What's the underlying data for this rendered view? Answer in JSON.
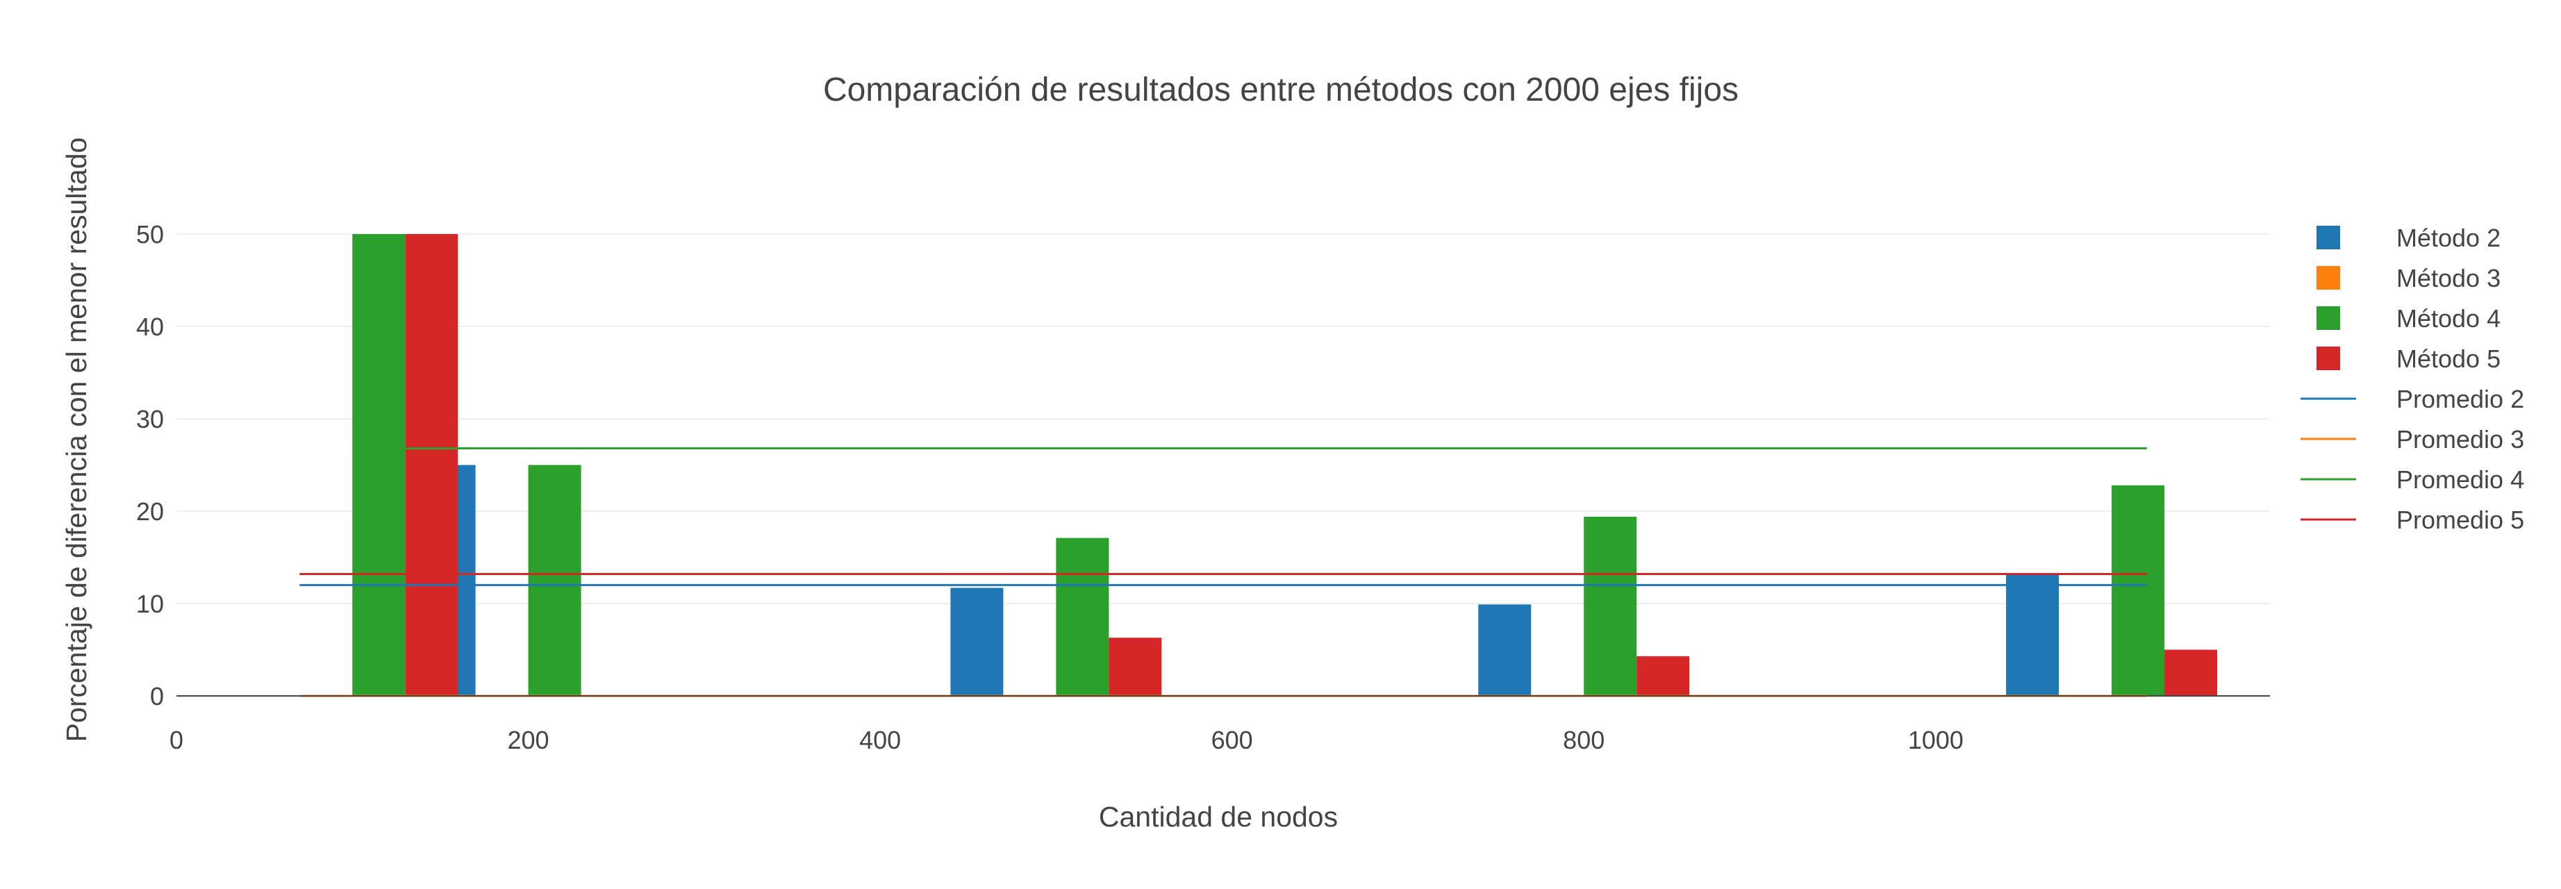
{
  "chart_data": {
    "type": "bar",
    "title": "Comparación de resultados entre métodos con 2000 ejes fijos",
    "xlabel": "Cantidad de nodos",
    "ylabel": "Porcentaje de diferencia con el menor resultado",
    "xlim": [
      0,
      1190
    ],
    "ylim": [
      0,
      50
    ],
    "x_ticks": [
      0,
      200,
      400,
      600,
      800,
      1000
    ],
    "y_ticks": [
      0,
      10,
      20,
      30,
      40,
      50
    ],
    "grid": "horizontal",
    "legend_position": "right",
    "groups": [
      100,
      200,
      500,
      800,
      1100
    ],
    "bar_series": [
      {
        "name": "Método 2",
        "color": "#1f77b4",
        "values": [
          0,
          25,
          11.7,
          9.9,
          13.3
        ]
      },
      {
        "name": "Método 3",
        "color": "#ff7f0e",
        "values": [
          0,
          0,
          0,
          0,
          0
        ]
      },
      {
        "name": "Método 4",
        "color": "#2ca02c",
        "values": [
          50,
          25,
          17.1,
          19.4,
          22.8
        ]
      },
      {
        "name": "Método 5",
        "color": "#d62728",
        "values": [
          50,
          0,
          6.3,
          4.3,
          5.0
        ]
      }
    ],
    "line_series": [
      {
        "name": "Promedio 2",
        "color": "#1f77b4",
        "value": 12.0,
        "x_range": [
          70,
          1120
        ]
      },
      {
        "name": "Promedio 3",
        "color": "#ff7f0e",
        "value": 0,
        "x_range": [
          70,
          1120
        ]
      },
      {
        "name": "Promedio 4",
        "color": "#2ca02c",
        "value": 26.8,
        "x_range": [
          100,
          1120
        ]
      },
      {
        "name": "Promedio 5",
        "color": "#d62728",
        "value": 13.2,
        "x_range": [
          70,
          1120
        ]
      }
    ]
  }
}
